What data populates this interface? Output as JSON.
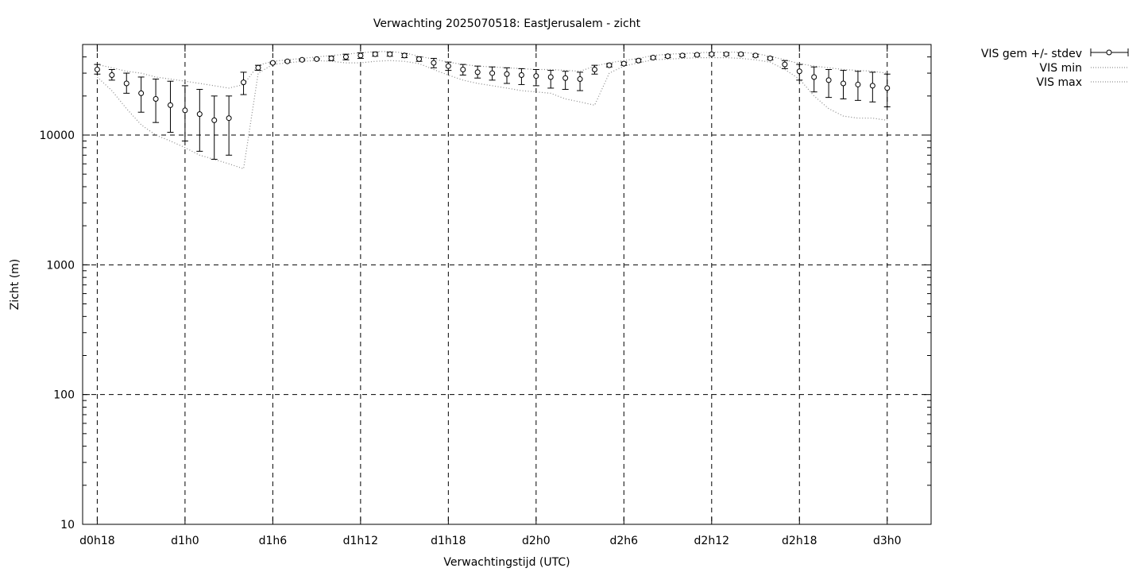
{
  "chart_data": {
    "type": "line",
    "title": "Verwachting 2025070518: EastJerusalem - zicht",
    "xlabel": "Verwachtingstijd (UTC)",
    "ylabel": "Zicht (m)",
    "yscale": "log",
    "ylim": [
      10,
      50000
    ],
    "xlim_hours": [
      -1,
      57
    ],
    "grid": true,
    "legend_position": "outside-top-right",
    "y_ticks": [
      "10",
      "100",
      "1000",
      "10000"
    ],
    "x_ticks": [
      {
        "label": "d0h18",
        "hour": 0
      },
      {
        "label": "d1h0",
        "hour": 6
      },
      {
        "label": "d1h6",
        "hour": 12
      },
      {
        "label": "d1h12",
        "hour": 18
      },
      {
        "label": "d1h18",
        "hour": 24
      },
      {
        "label": "d2h0",
        "hour": 30
      },
      {
        "label": "d2h6",
        "hour": 36
      },
      {
        "label": "d2h12",
        "hour": 42
      },
      {
        "label": "d2h18",
        "hour": 48
      },
      {
        "label": "d3h0",
        "hour": 54
      }
    ],
    "series": [
      {
        "name": "VIS gem +/- stdev",
        "style": "errorbars",
        "hours": [
          0,
          1,
          2,
          3,
          4,
          5,
          6,
          7,
          8,
          9,
          10,
          11,
          12,
          13,
          14,
          15,
          16,
          17,
          18,
          19,
          20,
          21,
          22,
          23,
          24,
          25,
          26,
          27,
          28,
          29,
          30,
          31,
          32,
          33,
          34,
          35,
          36,
          37,
          38,
          39,
          40,
          41,
          42,
          43,
          44,
          45,
          46,
          47,
          48,
          49,
          50,
          51,
          52,
          53,
          54
        ],
        "values": [
          32000,
          29000,
          25000,
          21000,
          19000,
          17000,
          15500,
          14500,
          13000,
          13500,
          25500,
          33000,
          36000,
          37000,
          38000,
          38500,
          39000,
          40000,
          41000,
          42000,
          42000,
          41000,
          38500,
          36000,
          34000,
          32000,
          30500,
          30000,
          29500,
          29000,
          28500,
          28000,
          27500,
          27000,
          32000,
          34500,
          35500,
          37500,
          39500,
          40500,
          41000,
          41500,
          42000,
          42000,
          42000,
          41000,
          39000,
          35000,
          31000,
          28000,
          26500,
          25000,
          24500,
          24000,
          23000
        ],
        "low": [
          29500,
          26500,
          21000,
          15000,
          12500,
          10500,
          9000,
          7500,
          6500,
          7000,
          20500,
          31500,
          35500,
          36500,
          37500,
          38000,
          37500,
          38000,
          39000,
          40500,
          40500,
          39500,
          37000,
          33000,
          31500,
          29000,
          27500,
          26500,
          25000,
          24500,
          24000,
          23000,
          22500,
          22000,
          29500,
          33500,
          34500,
          36500,
          38500,
          39500,
          40000,
          40500,
          41000,
          41000,
          41000,
          40000,
          38000,
          32500,
          26500,
          21500,
          19500,
          19000,
          18500,
          18000,
          16500
        ],
        "high": [
          35000,
          32000,
          30000,
          28000,
          27000,
          26000,
          24000,
          22500,
          20000,
          20000,
          30500,
          34500,
          36500,
          37500,
          38500,
          39000,
          40500,
          42000,
          43000,
          43500,
          43500,
          42500,
          40000,
          39000,
          36500,
          35000,
          34000,
          33500,
          33000,
          32500,
          32000,
          31500,
          31000,
          30500,
          34500,
          35500,
          36500,
          38500,
          40500,
          41500,
          42000,
          42500,
          43000,
          43000,
          43000,
          42000,
          40000,
          37500,
          35000,
          33500,
          32000,
          31500,
          31000,
          30500,
          29500
        ]
      },
      {
        "name": "VIS min",
        "style": "dotted",
        "values": [
          28000,
          22000,
          16000,
          12000,
          10000,
          9000,
          8000,
          7000,
          6500,
          6000,
          5500,
          30000,
          35000,
          36000,
          37000,
          37500,
          37000,
          36000,
          36000,
          37000,
          37500,
          37000,
          35500,
          32000,
          29000,
          26500,
          25000,
          24000,
          23000,
          22000,
          21500,
          21000,
          19000,
          18000,
          17000,
          30000,
          34000,
          36000,
          38000,
          38500,
          39000,
          39500,
          39500,
          39500,
          39000,
          38000,
          36500,
          32000,
          27000,
          20000,
          16000,
          14000,
          13500,
          13500,
          13000
        ]
      },
      {
        "name": "VIS max",
        "style": "dotted",
        "values": [
          35000,
          33000,
          31000,
          30000,
          28000,
          27000,
          26000,
          25000,
          24000,
          23000,
          24500,
          34500,
          37000,
          38000,
          39000,
          40000,
          41000,
          42000,
          43000,
          44000,
          44000,
          43000,
          40500,
          38500,
          36500,
          35000,
          34000,
          33500,
          33000,
          32500,
          32000,
          32000,
          31500,
          31000,
          34000,
          36000,
          37500,
          39000,
          41000,
          42000,
          42500,
          43000,
          43500,
          43500,
          43500,
          42500,
          40500,
          38000,
          35500,
          34000,
          33000,
          32000,
          31500,
          31000,
          30000
        ]
      }
    ]
  }
}
